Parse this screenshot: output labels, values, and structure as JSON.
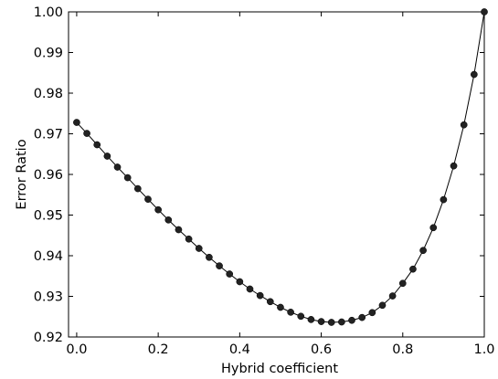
{
  "chart_data": {
    "type": "line",
    "xlabel": "Hybrid coefficient",
    "ylabel": "Error Ratio",
    "xlim": [
      -0.02,
      1.0
    ],
    "ylim": [
      0.92,
      1.0
    ],
    "x_ticks": [
      0.0,
      0.2,
      0.4,
      0.6,
      0.8,
      1.0
    ],
    "x_tick_labels": [
      "0.0",
      "0.2",
      "0.4",
      "0.6",
      "0.8",
      "1.0"
    ],
    "y_ticks": [
      0.92,
      0.93,
      0.94,
      0.95,
      0.96,
      0.97,
      0.98,
      0.99,
      1.0
    ],
    "y_tick_labels": [
      "0.92",
      "0.93",
      "0.94",
      "0.95",
      "0.96",
      "0.97",
      "0.98",
      "0.99",
      "1.00"
    ],
    "grid": false,
    "marker": "circle",
    "line_color": "#000000",
    "marker_color": "#222222",
    "series": [
      {
        "x": [
          0.0,
          0.025,
          0.05,
          0.075,
          0.1,
          0.125,
          0.15,
          0.175,
          0.2,
          0.225,
          0.25,
          0.275,
          0.3,
          0.325,
          0.35,
          0.375,
          0.4,
          0.425,
          0.45,
          0.475,
          0.5,
          0.525,
          0.55,
          0.575,
          0.6,
          0.625,
          0.65,
          0.675,
          0.7,
          0.725,
          0.75,
          0.775,
          0.8,
          0.825,
          0.85,
          0.875,
          0.9,
          0.925,
          0.95,
          0.975,
          1.0
        ],
        "y": [
          0.9728,
          0.9701,
          0.9673,
          0.9645,
          0.9618,
          0.9592,
          0.9565,
          0.9539,
          0.9513,
          0.9488,
          0.9464,
          0.9441,
          0.9418,
          0.9396,
          0.9375,
          0.9355,
          0.9336,
          0.9318,
          0.9302,
          0.9287,
          0.9273,
          0.9261,
          0.9251,
          0.9243,
          0.9238,
          0.9236,
          0.9237,
          0.9241,
          0.9248,
          0.926,
          0.9278,
          0.9301,
          0.9332,
          0.9367,
          0.9413,
          0.9469,
          0.9538,
          0.9621,
          0.9722,
          0.9846,
          1.0
        ]
      }
    ]
  }
}
